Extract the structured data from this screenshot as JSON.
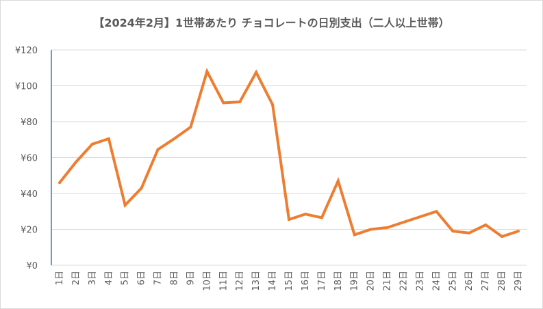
{
  "chart_data": {
    "type": "line",
    "title": "【2024年2月】1世帯あたり チョコレートの日別支出（二人以上世帯）",
    "xlabel": "",
    "ylabel": "",
    "ylim": [
      0,
      120
    ],
    "ytick_labels": [
      "¥0",
      "¥20",
      "¥40",
      "¥60",
      "¥80",
      "¥100",
      "¥120"
    ],
    "categories": [
      "1日",
      "2日",
      "3日",
      "4日",
      "5日",
      "6日",
      "7日",
      "8日",
      "9日",
      "10日",
      "11日",
      "12日",
      "13日",
      "14日",
      "15日",
      "16日",
      "17日",
      "18日",
      "19日",
      "20日",
      "21日",
      "22日",
      "23日",
      "24日",
      "25日",
      "26日",
      "27日",
      "28日",
      "29日"
    ],
    "series": [
      {
        "color": "#ed7d31",
        "values": [
          46,
          57.5,
          67.5,
          70.5,
          33.5,
          43,
          64.5,
          70.5,
          77,
          108,
          90.5,
          91,
          107.5,
          89.5,
          25.5,
          28.5,
          26.5,
          47,
          17,
          20,
          21,
          24,
          27,
          30,
          19,
          18,
          22.5,
          16,
          19
        ]
      }
    ],
    "grid": true,
    "legend": "none"
  }
}
